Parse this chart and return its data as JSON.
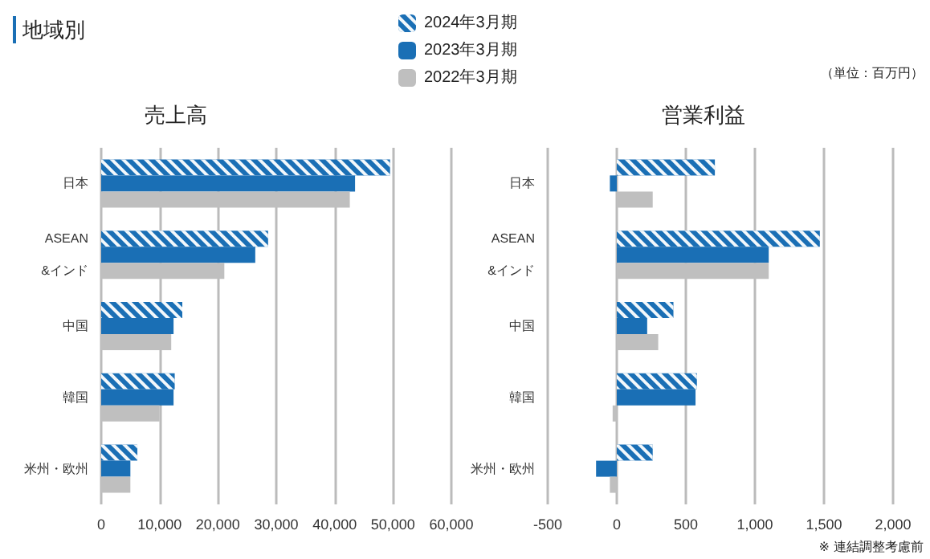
{
  "chart_data": [
    {
      "type": "bar",
      "orientation": "horizontal",
      "title": "売上高",
      "annotations": [
        "地域別"
      ],
      "legend": "top",
      "grid": "x",
      "categories": [
        "日本",
        "ASEAN\n&インド",
        "中国",
        "韓国",
        "米州・欧州"
      ],
      "xlim": [
        0,
        60000
      ],
      "xticks": [
        0,
        {
          "value": 10000,
          "label": "10,000"
        },
        {
          "value": 20000,
          "label": "20,000"
        },
        {
          "value": 30000,
          "label": "30,000"
        },
        {
          "value": 40000,
          "label": "40,000"
        },
        {
          "value": 50000,
          "label": "50,000"
        },
        {
          "value": 60000,
          "label": "60,000"
        }
      ],
      "series": [
        {
          "name": "2024年3月期",
          "color": "#1a6fb5",
          "values": [
            49500,
            28600,
            13900,
            12600,
            6200
          ]
        },
        {
          "name": "2023年3月期",
          "color": "#1a6fb5",
          "values": [
            43500,
            26400,
            12400,
            12400,
            5000
          ]
        },
        {
          "name": "2022年3月期",
          "color": "#bfbfbf",
          "values": [
            42600,
            21100,
            12000,
            10000,
            5000
          ]
        }
      ]
    },
    {
      "type": "bar",
      "orientation": "horizontal",
      "title": "営業利益",
      "annotations": [
        "（単位：百万円）",
        "※ 連結調整考慮前"
      ],
      "grid": "x",
      "categories": [
        "日本",
        "ASEAN\n&インド",
        "中国",
        "韓国",
        "米州・欧州"
      ],
      "xlim": [
        -500,
        2000
      ],
      "xticks": [
        -500,
        0,
        500,
        {
          "value": 1000,
          "label": "1,000"
        },
        {
          "value": 1500,
          "label": "1,500"
        },
        {
          "value": 2000,
          "label": "2,000"
        }
      ],
      "series": [
        {
          "color": "#1a6fb5",
          "values": [
            710,
            1470,
            410,
            580,
            260
          ]
        },
        {
          "color": "#1a6fb5",
          "values": [
            -50,
            1100,
            220,
            570,
            -150
          ]
        },
        {
          "color": "#bfbfbf",
          "values": [
            260,
            1100,
            300,
            -30,
            -50
          ]
        }
      ]
    }
  ]
}
